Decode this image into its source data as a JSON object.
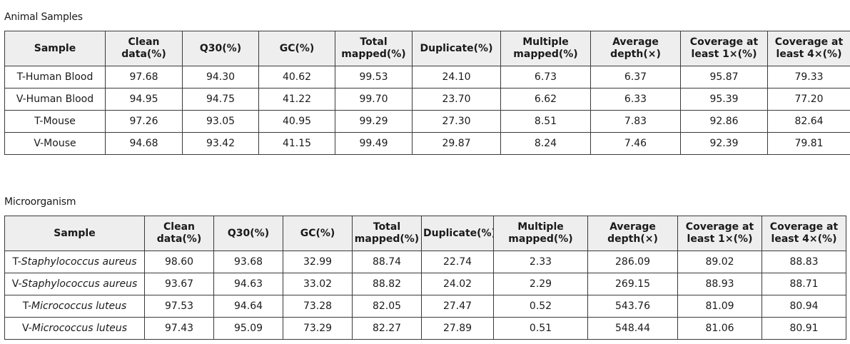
{
  "animal": {
    "caption": "Animal Samples",
    "headers": [
      "Sample",
      "Clean data(%)",
      "Q30(%)",
      "GC(%)",
      "Total mapped(%)",
      "Duplicate(%)",
      "Multiple mapped(%)",
      "Average depth(×)",
      "Coverage at least 1×(%)",
      "Coverage at least 4×(%)"
    ],
    "rows": [
      {
        "sample": "T-Human Blood",
        "values": [
          "97.68",
          "94.30",
          "40.62",
          "99.53",
          "24.10",
          "6.73",
          "6.37",
          "95.87",
          "79.33"
        ]
      },
      {
        "sample": "V-Human Blood",
        "values": [
          "94.95",
          "94.75",
          "41.22",
          "99.70",
          "23.70",
          "6.62",
          "6.33",
          "95.39",
          "77.20"
        ]
      },
      {
        "sample": "T-Mouse",
        "values": [
          "97.26",
          "93.05",
          "40.95",
          "99.29",
          "27.30",
          "8.51",
          "7.83",
          "92.86",
          "82.64"
        ]
      },
      {
        "sample": "V-Mouse",
        "values": [
          "94.68",
          "93.42",
          "41.15",
          "99.49",
          "29.87",
          "8.24",
          "7.46",
          "92.39",
          "79.81"
        ]
      }
    ]
  },
  "micro": {
    "caption": "Microorganism",
    "headers": [
      "Sample",
      "Clean data(%)",
      "Q30(%)",
      "GC(%)",
      "Total mapped(%)",
      "Duplicate(%)",
      "Multiple mapped(%)",
      "Average depth(×)",
      "Coverage at least 1×(%)",
      "Coverage at least 4×(%)"
    ],
    "rows": [
      {
        "prefix": "T-",
        "species": "Staphylococcus aureus",
        "values": [
          "98.60",
          "93.68",
          "32.99",
          "88.74",
          "22.74",
          "2.33",
          "286.09",
          "89.02",
          "88.83"
        ]
      },
      {
        "prefix": "V-",
        "species": "Staphylococcus aureus",
        "values": [
          "93.67",
          "94.63",
          "33.02",
          "88.82",
          "24.02",
          "2.29",
          "269.15",
          "88.93",
          "88.71"
        ]
      },
      {
        "prefix": "T-",
        "species": "Micrococcus luteus",
        "values": [
          "97.53",
          "94.64",
          "73.28",
          "82.05",
          "27.47",
          "0.52",
          "543.76",
          "81.09",
          "80.94"
        ]
      },
      {
        "prefix": "V-",
        "species": "Micrococcus luteus",
        "values": [
          "97.43",
          "95.09",
          "73.29",
          "82.27",
          "27.89",
          "0.51",
          "548.44",
          "81.06",
          "80.91"
        ]
      }
    ]
  }
}
